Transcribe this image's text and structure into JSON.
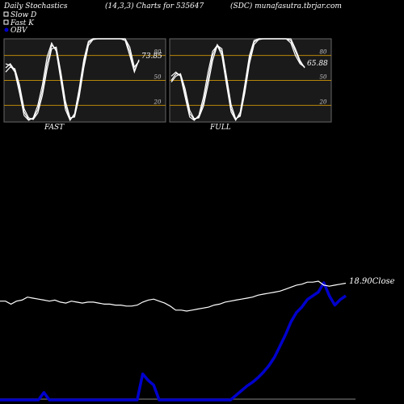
{
  "header": {
    "left": "Daily Stochastics",
    "center_left": "(14,3,3) Charts for 535647",
    "center_right": "(SDC) munafasutra.tbrjar.com"
  },
  "legend": [
    {
      "label": "Slow  D",
      "color": "#ffffff",
      "marker": "square-outline"
    },
    {
      "label": "Fast K",
      "color": "#ffffff",
      "marker": "square-outline"
    },
    {
      "label": "OBV",
      "color": "#0000cc",
      "marker": "dot"
    }
  ],
  "colors": {
    "background": "#000000",
    "panel": "#1a1a1a",
    "level_line": "#b8860b",
    "stoch_line": "#ffffff",
    "obv": "#0000cc",
    "price": "#ffffff"
  },
  "chart_data": [
    {
      "type": "line",
      "caption": "FAST",
      "ylim": [
        0,
        100
      ],
      "levels": [
        80,
        50,
        20
      ],
      "tick_labels": [
        "80",
        "50",
        "20"
      ],
      "last_value_label": "73.85",
      "series": [
        {
          "values": [
            70,
            68,
            60,
            35,
            8,
            2,
            5,
            20,
            45,
            78,
            95,
            85,
            50,
            15,
            2,
            10,
            40,
            75,
            97,
            100,
            100,
            100,
            100,
            100,
            100,
            100,
            98,
            80,
            60,
            75
          ]
        },
        {
          "values": [
            65,
            70,
            62,
            40,
            12,
            3,
            4,
            15,
            38,
            70,
            92,
            88,
            55,
            20,
            3,
            8,
            35,
            70,
            95,
            100,
            100,
            100,
            100,
            100,
            100,
            100,
            100,
            85,
            62,
            74
          ]
        },
        {
          "values": [
            60,
            66,
            64,
            45,
            16,
            5,
            3,
            11,
            32,
            63,
            88,
            90,
            60,
            25,
            5,
            6,
            30,
            65,
            92,
            99,
            100,
            100,
            100,
            100,
            100,
            100,
            100,
            90,
            66,
            73
          ]
        }
      ]
    },
    {
      "type": "line",
      "caption": "FULL",
      "ylim": [
        0,
        100
      ],
      "levels": [
        80,
        50,
        20
      ],
      "tick_labels": [
        "80",
        "50",
        "20"
      ],
      "last_value_label": "65.88",
      "series": [
        {
          "values": [
            55,
            60,
            55,
            30,
            6,
            2,
            8,
            30,
            60,
            85,
            92,
            80,
            45,
            12,
            2,
            12,
            45,
            80,
            98,
            100,
            100,
            100,
            100,
            100,
            100,
            100,
            95,
            80,
            70,
            66
          ]
        },
        {
          "values": [
            50,
            58,
            57,
            35,
            10,
            3,
            6,
            24,
            52,
            80,
            93,
            84,
            50,
            16,
            3,
            9,
            40,
            75,
            96,
            100,
            100,
            100,
            100,
            100,
            100,
            100,
            98,
            85,
            72,
            66
          ]
        },
        {
          "values": [
            48,
            55,
            58,
            40,
            14,
            4,
            5,
            19,
            45,
            74,
            92,
            88,
            55,
            21,
            4,
            7,
            35,
            70,
            93,
            99,
            100,
            100,
            100,
            100,
            100,
            100,
            100,
            88,
            74,
            65
          ]
        }
      ]
    },
    {
      "type": "line",
      "close_label": "18.90Close",
      "series": [
        {
          "name": "OBV",
          "values": [
            0,
            0,
            0,
            0,
            0,
            0,
            0,
            0,
            40,
            0,
            0,
            0,
            0,
            0,
            0,
            0,
            0,
            0,
            0,
            0,
            0,
            0,
            0,
            0,
            0,
            0,
            140,
            105,
            80,
            0,
            0,
            0,
            0,
            0,
            0,
            0,
            0,
            0,
            0,
            0,
            0,
            0,
            0,
            25,
            50,
            75,
            95,
            120,
            150,
            185,
            230,
            290,
            350,
            420,
            470,
            500,
            540,
            560,
            580,
            630,
            560,
            510,
            540,
            560
          ]
        },
        {
          "name": "Close",
          "values": [
            18.0,
            18.0,
            17.85,
            18.0,
            18.05,
            18.2,
            18.15,
            18.1,
            18.05,
            18.0,
            18.05,
            17.95,
            17.9,
            18.0,
            17.95,
            17.9,
            17.95,
            17.95,
            17.9,
            17.85,
            17.85,
            17.8,
            17.8,
            17.75,
            17.75,
            17.8,
            17.95,
            18.05,
            18.1,
            18.0,
            17.9,
            17.75,
            17.55,
            17.55,
            17.5,
            17.55,
            17.6,
            17.65,
            17.7,
            17.8,
            17.85,
            17.95,
            18.0,
            18.05,
            18.1,
            18.15,
            18.2,
            18.3,
            18.35,
            18.4,
            18.45,
            18.5,
            18.6,
            18.7,
            18.8,
            18.85,
            18.95,
            18.95,
            19.0,
            18.8,
            18.75,
            18.8,
            18.85,
            18.9
          ]
        }
      ]
    }
  ]
}
